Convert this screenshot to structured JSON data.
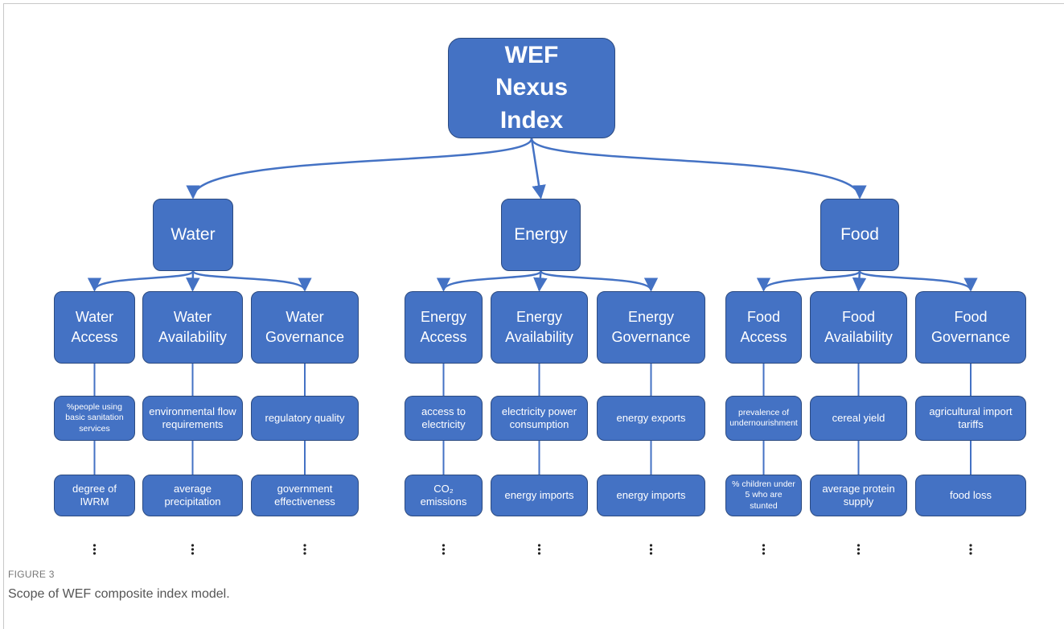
{
  "root": {
    "label": "WEF Nexus Index"
  },
  "pillars": [
    {
      "label": "Water",
      "components": [
        {
          "label": "Water Access",
          "indicators": [
            "%people using basic sanitation services",
            "degree of IWRM"
          ]
        },
        {
          "label": "Water Availability",
          "indicators": [
            "environmental flow requirements",
            "average precipitation"
          ]
        },
        {
          "label": "Water Governance",
          "indicators": [
            "regulatory quality",
            "government effectiveness"
          ]
        }
      ]
    },
    {
      "label": "Energy",
      "components": [
        {
          "label": "Energy Access",
          "indicators": [
            "access to electricity",
            "CO₂ emissions"
          ]
        },
        {
          "label": "Energy Availability",
          "indicators": [
            "electricity power consumption",
            "energy imports"
          ]
        },
        {
          "label": "Energy Governance",
          "indicators": [
            "energy exports",
            "energy imports"
          ]
        }
      ]
    },
    {
      "label": "Food",
      "components": [
        {
          "label": "Food Access",
          "indicators": [
            "prevalence of undernourishment",
            "% children under 5 who are stunted"
          ]
        },
        {
          "label": "Food Availability",
          "indicators": [
            "cereal yield",
            "average protein supply"
          ]
        },
        {
          "label": "Food Governance",
          "indicators": [
            "agricultural import tariffs",
            "food loss"
          ]
        }
      ]
    }
  ],
  "caption": {
    "figure": "FIGURE 3",
    "text": "Scope of WEF composite index model."
  }
}
